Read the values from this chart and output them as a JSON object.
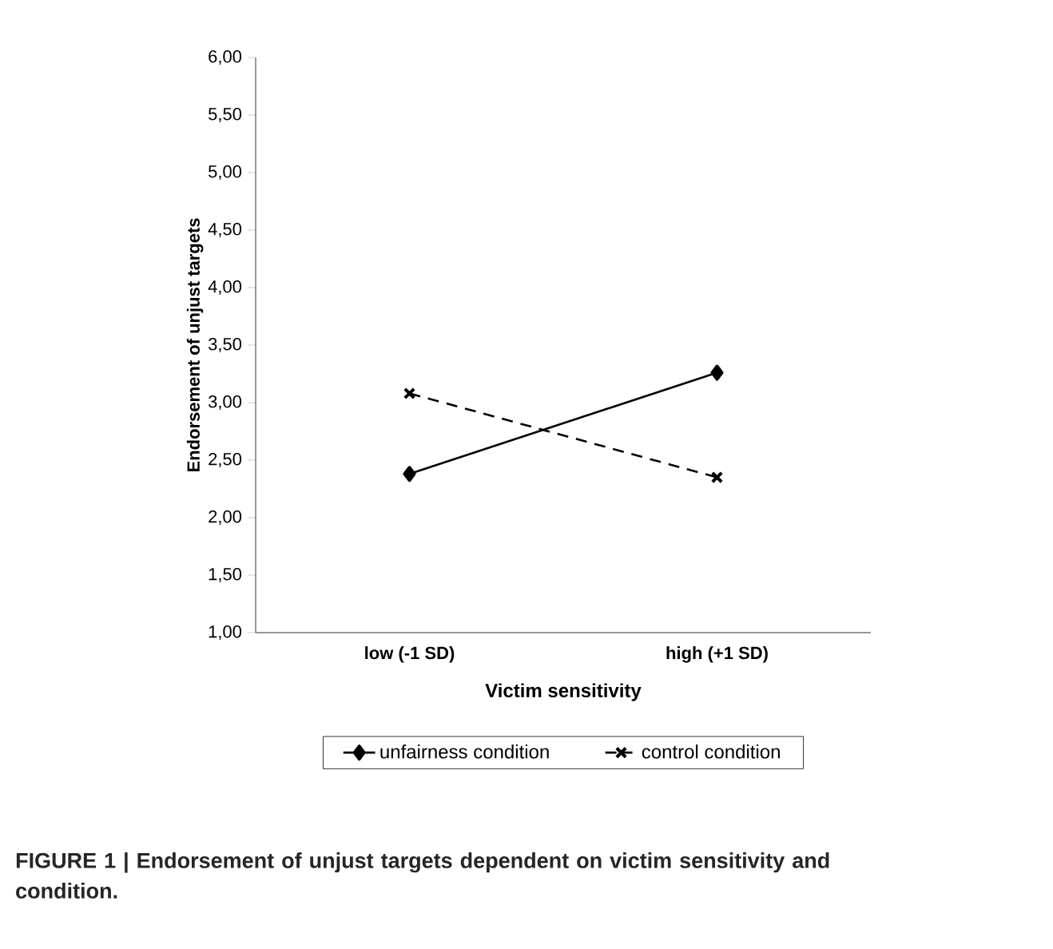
{
  "chart_data": {
    "type": "line",
    "xlabel": "Victim sensitivity",
    "ylabel": "Endorsement of unjust targets",
    "categories": [
      "low (-1 SD)",
      "high (+1 SD)"
    ],
    "series": [
      {
        "name": "unfairness condition",
        "color": "#000000",
        "values": [
          2.38,
          3.26
        ],
        "marker": "diamond",
        "line_style": "solid"
      },
      {
        "name": "control condition",
        "color": "#000000",
        "values": [
          3.08,
          2.35
        ],
        "marker": "cross",
        "line_style": "dashed"
      }
    ],
    "ylim": [
      1,
      6
    ],
    "yticks": [
      {
        "value": 1,
        "label": "1,00"
      },
      {
        "value": 1.5,
        "label": "1,50"
      },
      {
        "value": 2,
        "label": "2,00"
      },
      {
        "value": 2.5,
        "label": "2,50"
      },
      {
        "value": 3,
        "label": "3,00"
      },
      {
        "value": 3.5,
        "label": "3,50"
      },
      {
        "value": 4,
        "label": "4,00"
      },
      {
        "value": 4.5,
        "label": "4,50"
      },
      {
        "value": 5,
        "label": "5,00"
      },
      {
        "value": 5.5,
        "label": "5,50"
      },
      {
        "value": 6,
        "label": "6,00"
      }
    ],
    "grid": false,
    "legend": "bottom",
    "annotations": [
      "FIGURE 1 | Endorsement of unjust targets dependent on victim sensitivity and condition."
    ]
  }
}
